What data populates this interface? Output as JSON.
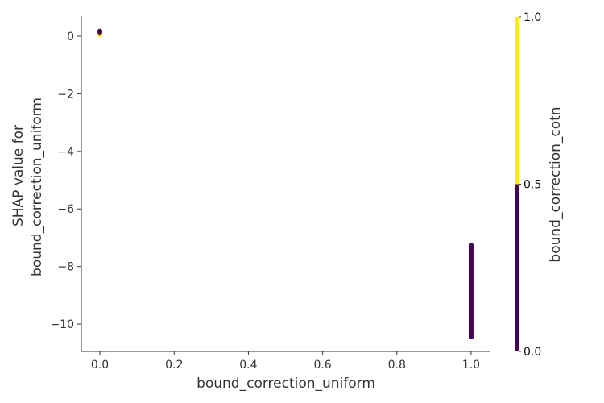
{
  "chart_data": {
    "type": "scatter",
    "title": "",
    "xlabel": "bound_correction_uniform",
    "ylabel_lines": [
      "SHAP value for",
      "bound_correction_uniform"
    ],
    "xlim": [
      -0.05,
      1.05
    ],
    "ylim": [
      -10.95,
      0.7
    ],
    "xticks": [
      0.0,
      0.2,
      0.4,
      0.6,
      0.8,
      1.0
    ],
    "xtick_labels": [
      "0.0",
      "0.2",
      "0.4",
      "0.6",
      "0.8",
      "1.0"
    ],
    "yticks": [
      0,
      -2,
      -4,
      -6,
      -8,
      -10
    ],
    "ytick_labels": [
      "0",
      "−2",
      "−4",
      "−6",
      "−8",
      "−10"
    ],
    "grid": false,
    "points": [
      {
        "x": 0.0,
        "y": 0.18,
        "color_value": 0.0
      },
      {
        "x": 0.0,
        "y": 0.14,
        "color_value": 0.0
      },
      {
        "x": 0.0,
        "y": 0.05,
        "color_value": 1.0
      },
      {
        "x": 0.0,
        "y": 0.1,
        "color_value": 1.0
      }
    ],
    "dense_segments": [
      {
        "x": 1.0,
        "y_from": -7.25,
        "y_to": -10.45,
        "color_value": 0.0
      }
    ],
    "colorbar": {
      "label": "bound_correction_cotn",
      "range": [
        0.0,
        1.0
      ],
      "ticks": [
        "0.0",
        "0.5",
        "1.0"
      ],
      "low_color": "#440154",
      "high_color": "#fde725"
    }
  }
}
